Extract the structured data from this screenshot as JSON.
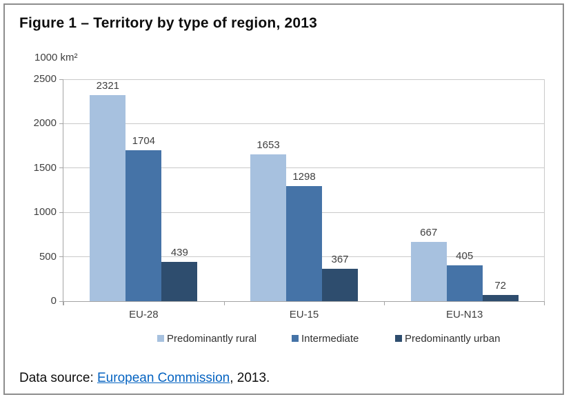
{
  "figure": {
    "title": "Figure 1 – Territory by type of region, 2013",
    "source_prefix": "Data source: ",
    "source_link_text": "European Commission",
    "source_suffix": ", 2013."
  },
  "chart_data": {
    "type": "bar",
    "title": "Figure 1 – Territory by type of region, 2013",
    "unit_label": "1000 km²",
    "categories": [
      "EU-28",
      "EU-15",
      "EU-N13"
    ],
    "series": [
      {
        "name": "Predominantly rural",
        "color": "#a7c1df",
        "values": [
          2321,
          1653,
          667
        ]
      },
      {
        "name": "Intermediate",
        "color": "#4573a7",
        "values": [
          1704,
          1298,
          405
        ]
      },
      {
        "name": "Predominantly urban",
        "color": "#2e4d6e",
        "values": [
          439,
          367,
          72
        ]
      }
    ],
    "ylim": [
      0,
      2500
    ],
    "yticks": [
      0,
      500,
      1000,
      1500,
      2000,
      2500
    ],
    "grid": true,
    "legend_position": "bottom"
  },
  "colors": {
    "border": "#8c8c8c",
    "axis": "#a3a3a3",
    "gridline": "#c9c9c9",
    "label": "#3f3f3f",
    "link": "#0563c1"
  }
}
